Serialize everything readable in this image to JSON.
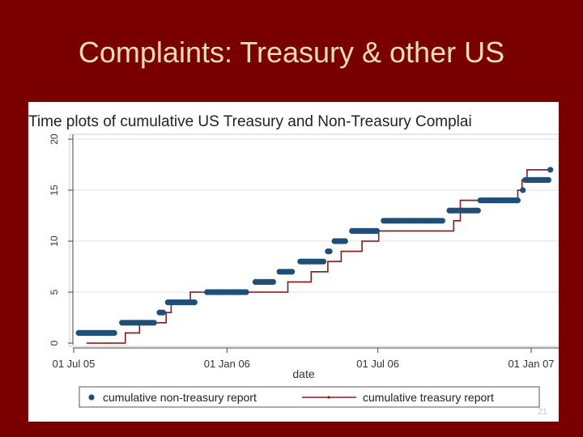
{
  "slide": {
    "title": "Complaints: Treasury & other US",
    "page_number": "21"
  },
  "colors": {
    "background": "#7a0000",
    "title": "#f2ddb0",
    "non_treasury": "#1f4e79",
    "treasury": "#8b1a1a"
  },
  "chart_data": {
    "type": "line",
    "title": "Time plots of cumulative US Treasury and Non-Treasury Complai",
    "xlabel": "date",
    "ylabel": "",
    "xlim": [
      "2005-07-01",
      "2007-01-01"
    ],
    "ylim": [
      0,
      20
    ],
    "x_ticks": [
      "01 Jul 05",
      "01 Jan 06",
      "01 Jul 06",
      "01 Jan 07"
    ],
    "y_ticks": [
      "0",
      "5",
      "10",
      "15",
      "20"
    ],
    "grid": true,
    "legend_position": "bottom",
    "series": [
      {
        "name": "cumulative non-treasury report",
        "style": "markers",
        "points": [
          [
            "2005-07-07",
            1
          ],
          [
            "2005-08-20",
            1
          ],
          [
            "2005-08-28",
            2
          ],
          [
            "2005-10-06",
            2
          ],
          [
            "2005-10-12",
            3
          ],
          [
            "2005-10-18",
            3
          ],
          [
            "2005-10-22",
            4
          ],
          [
            "2005-11-25",
            4
          ],
          [
            "2005-12-08",
            5
          ],
          [
            "2006-01-26",
            5
          ],
          [
            "2006-02-04",
            6
          ],
          [
            "2006-02-26",
            6
          ],
          [
            "2006-03-05",
            7
          ],
          [
            "2006-03-22",
            7
          ],
          [
            "2006-03-30",
            8
          ],
          [
            "2006-04-28",
            8
          ],
          [
            "2006-05-02",
            9
          ],
          [
            "2006-05-06",
            9
          ],
          [
            "2006-05-10",
            10
          ],
          [
            "2006-05-24",
            10
          ],
          [
            "2006-05-31",
            11
          ],
          [
            "2006-07-01",
            11
          ],
          [
            "2006-07-08",
            12
          ],
          [
            "2006-09-17",
            12
          ],
          [
            "2006-09-25",
            13
          ],
          [
            "2006-10-30",
            13
          ],
          [
            "2006-11-01",
            14
          ],
          [
            "2006-12-18",
            14
          ],
          [
            "2006-12-22",
            15
          ],
          [
            "2006-12-24",
            15
          ],
          [
            "2006-12-25",
            16
          ],
          [
            "2007-01-22",
            16
          ],
          [
            "2007-01-24",
            17
          ]
        ]
      },
      {
        "name": "cumulative treasury report",
        "style": "step",
        "points": [
          [
            "2005-07-17",
            0
          ],
          [
            "2005-09-01",
            0
          ],
          [
            "2005-09-01",
            1
          ],
          [
            "2005-09-18",
            1
          ],
          [
            "2005-09-18",
            2
          ],
          [
            "2005-10-20",
            2
          ],
          [
            "2005-10-20",
            3
          ],
          [
            "2005-10-26",
            3
          ],
          [
            "2005-10-26",
            4
          ],
          [
            "2005-11-18",
            4
          ],
          [
            "2005-11-18",
            5
          ],
          [
            "2006-03-15",
            5
          ],
          [
            "2006-03-15",
            6
          ],
          [
            "2006-04-12",
            6
          ],
          [
            "2006-04-12",
            7
          ],
          [
            "2006-05-02",
            7
          ],
          [
            "2006-05-02",
            8
          ],
          [
            "2006-05-18",
            8
          ],
          [
            "2006-05-18",
            9
          ],
          [
            "2006-06-12",
            9
          ],
          [
            "2006-06-12",
            10
          ],
          [
            "2006-07-02",
            10
          ],
          [
            "2006-07-02",
            11
          ],
          [
            "2006-09-30",
            11
          ],
          [
            "2006-09-30",
            12
          ],
          [
            "2006-10-08",
            12
          ],
          [
            "2006-10-08",
            14
          ],
          [
            "2006-12-16",
            14
          ],
          [
            "2006-12-16",
            15
          ],
          [
            "2006-12-21",
            15
          ],
          [
            "2006-12-21",
            16
          ],
          [
            "2006-12-27",
            16
          ],
          [
            "2006-12-27",
            17
          ],
          [
            "2007-01-21",
            17
          ]
        ]
      }
    ]
  }
}
